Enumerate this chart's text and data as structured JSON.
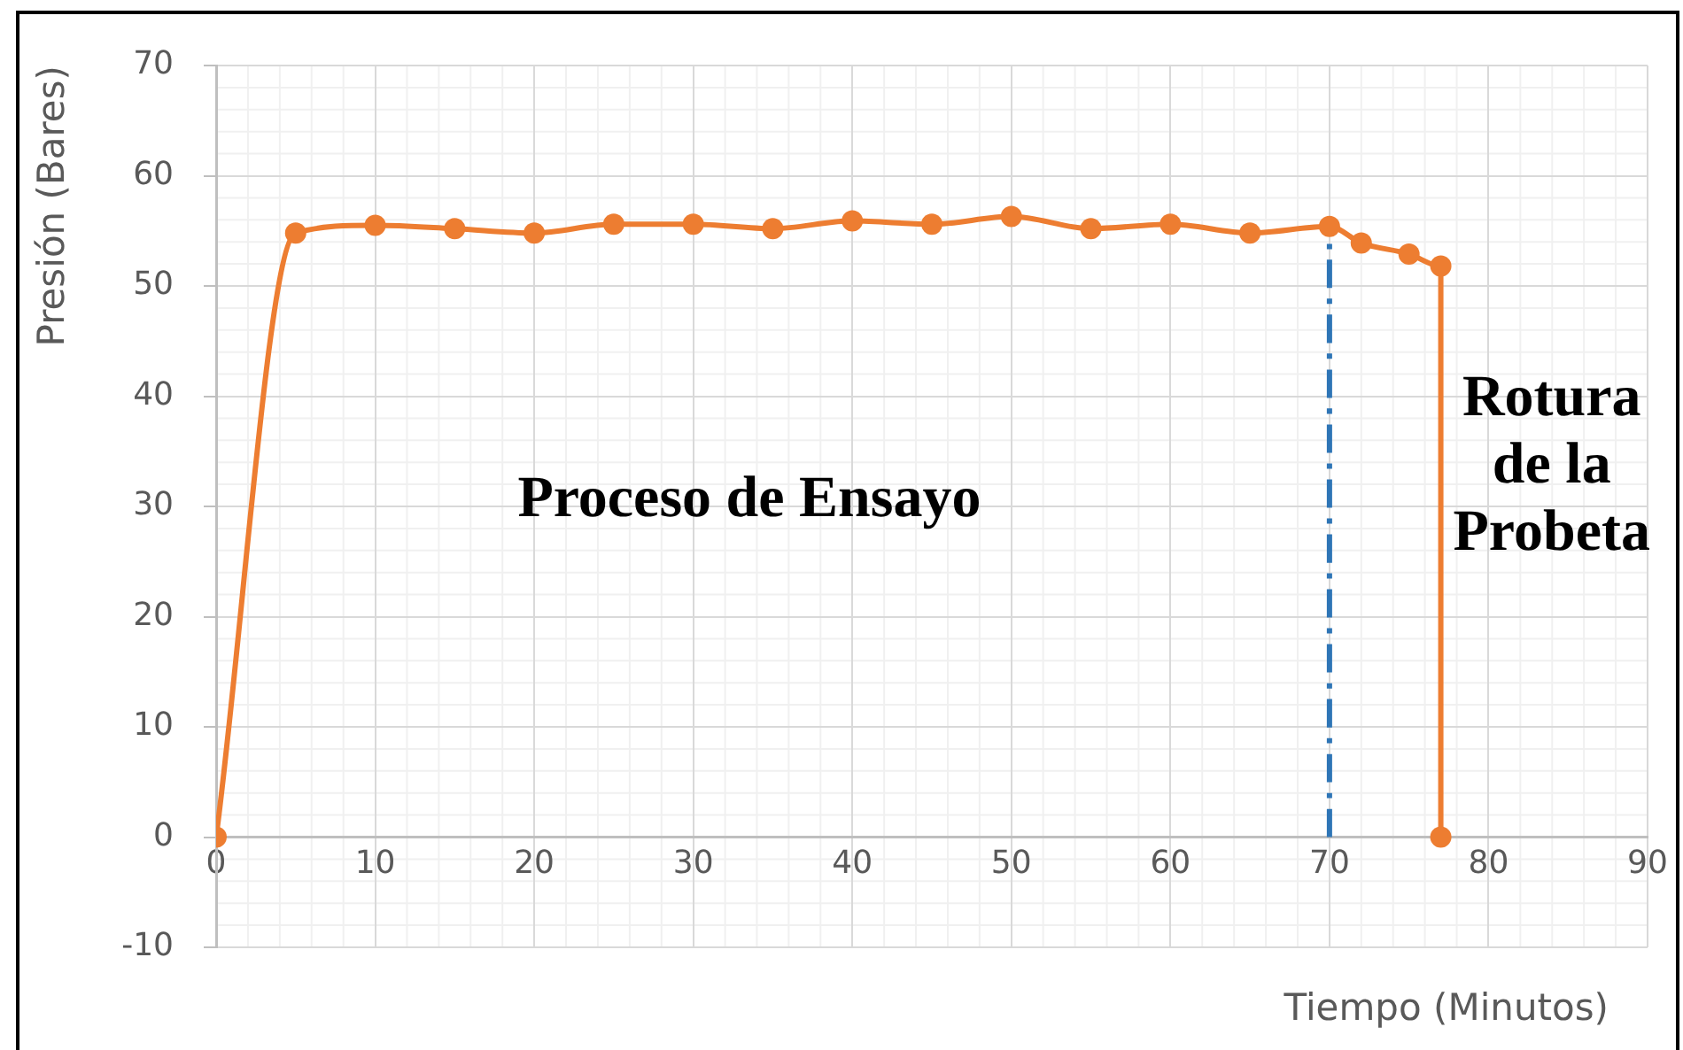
{
  "chart_data": {
    "type": "line",
    "xlabel": "Tiempo (Minutos)",
    "ylabel": "Presión (Bares)",
    "annotations": [
      "Proceso de Ensayo",
      "Rotura de la Probeta"
    ],
    "series": [
      {
        "x": [
          0,
          5,
          10,
          15,
          20,
          25,
          30,
          35,
          40,
          45,
          50,
          55,
          60,
          65,
          70,
          72,
          75,
          77,
          77
        ],
        "values": [
          0,
          54.8,
          55.5,
          55.2,
          54.8,
          55.6,
          55.6,
          55.2,
          55.9,
          55.6,
          56.3,
          55.2,
          55.6,
          54.8,
          55.4,
          53.9,
          52.9,
          51.8,
          0
        ],
        "color": "#ed7d31",
        "marker": "circle"
      },
      {
        "x": [
          70,
          70
        ],
        "values": [
          0,
          55.4
        ],
        "color": "#2e75b6",
        "line_style": "dashdot",
        "marker": "none"
      }
    ],
    "xlim": [
      0,
      90
    ],
    "xticks": [
      0,
      10,
      20,
      30,
      40,
      50,
      60,
      70,
      80,
      90
    ],
    "ylim": [
      -10,
      70
    ],
    "yticks": [
      -10,
      0,
      10,
      20,
      30,
      40,
      50,
      60,
      70
    ],
    "grid": true
  }
}
